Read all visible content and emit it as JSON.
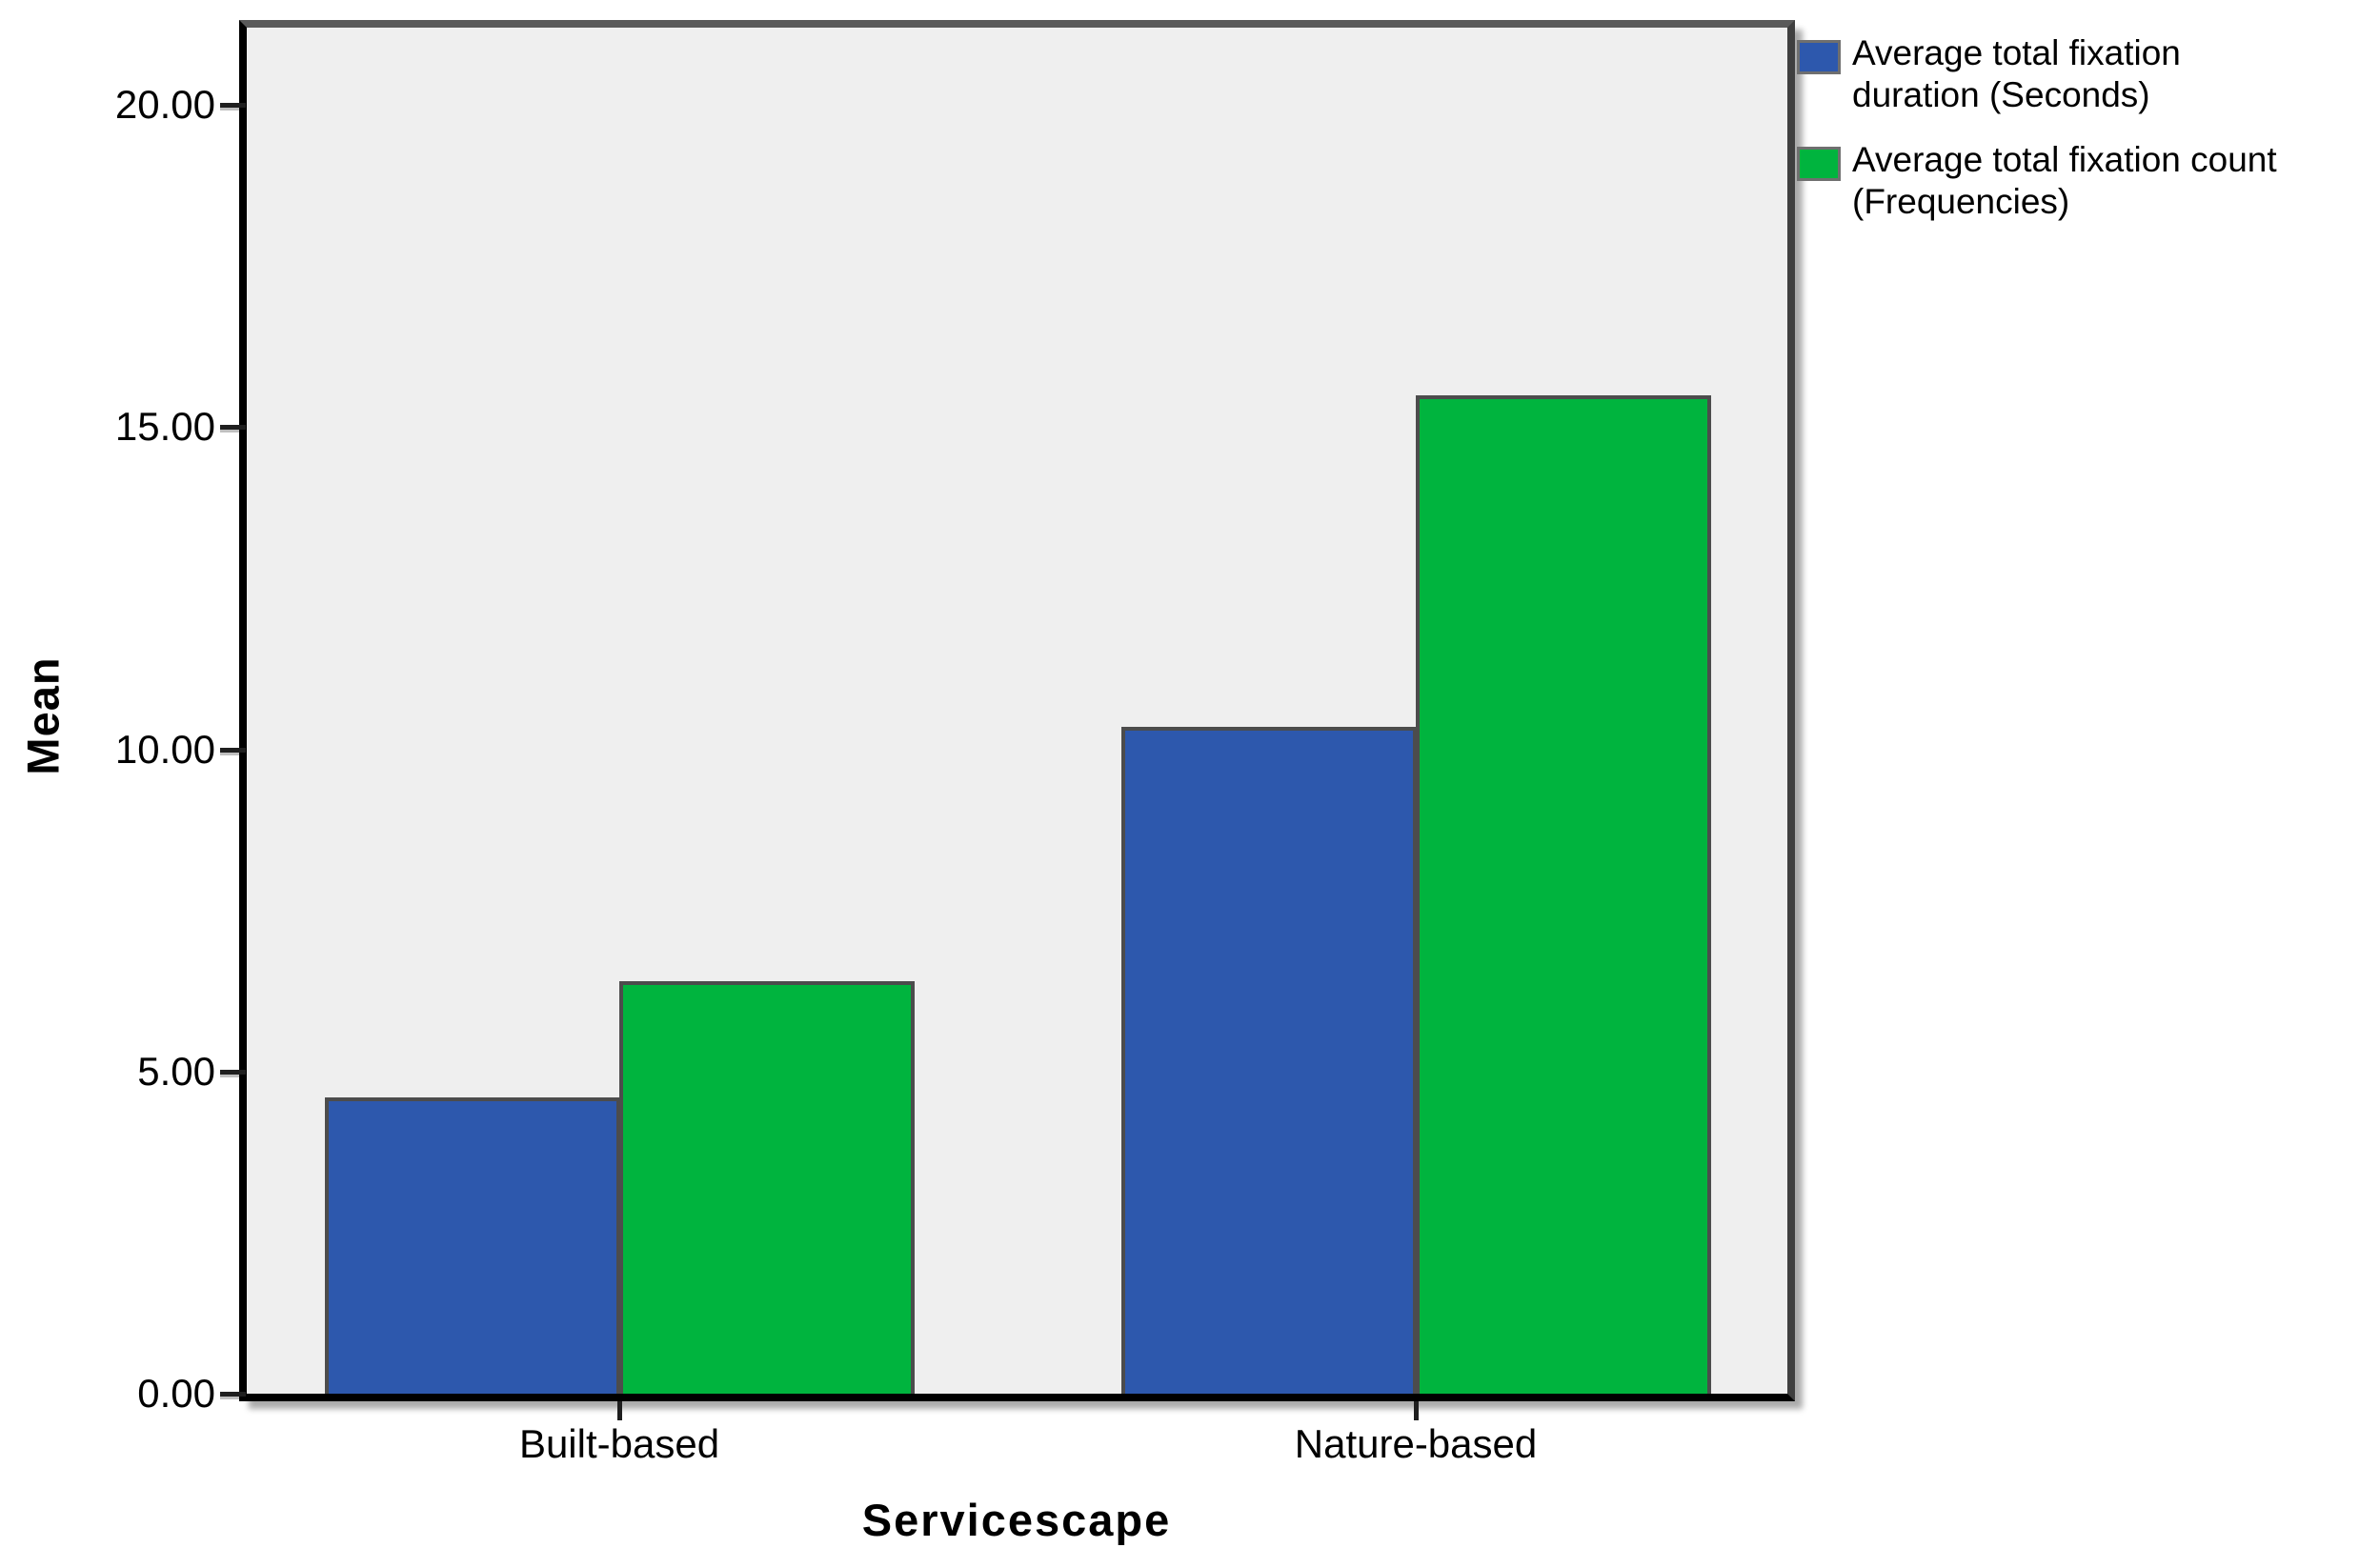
{
  "chart_data": {
    "type": "bar",
    "title": "",
    "categories": [
      "Built-based",
      "Nature-based"
    ],
    "series": [
      {
        "name": "Average total fixation duration (Seconds)",
        "color": "#2d58ad",
        "values": [
          4.6,
          10.35
        ]
      },
      {
        "name": "Average total fixation count (Frequencies)",
        "color": "#00b43e",
        "values": [
          6.4,
          15.5
        ]
      }
    ],
    "xlabel": "Servicescape",
    "ylabel": "Mean",
    "ylim": [
      0,
      21.2
    ],
    "yticks": [
      0,
      5,
      10,
      15,
      20
    ],
    "ytick_labels": [
      "0.00",
      "5.00",
      "10.00",
      "15.00",
      "20.00"
    ],
    "grid": false,
    "legend_position": "outside-top-right",
    "plot_background": "#efefef",
    "bar_border_color": "#4c4c4c"
  },
  "legend": {
    "items": [
      {
        "lines": "Average total fixation\nduration (Seconds)",
        "color": "#2d58ad"
      },
      {
        "lines": "Average total fixation count\n(Frequencies)",
        "color": "#00b43e"
      }
    ]
  }
}
